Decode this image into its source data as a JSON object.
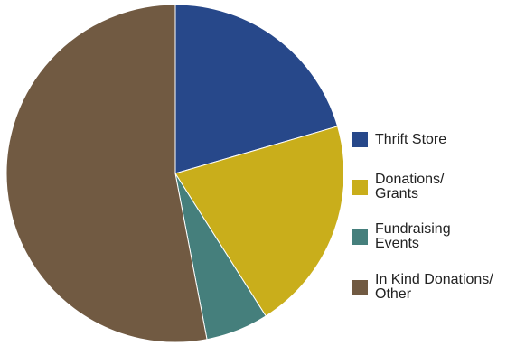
{
  "chart_data": {
    "type": "pie",
    "categories": [
      "Thrift Store",
      "Donations/\nGrants",
      "Fundraising\nEvents",
      "In Kind Donations/\nOther"
    ],
    "values": [
      20.5,
      20.5,
      6,
      53
    ],
    "colors": [
      "#27488a",
      "#c9ae1b",
      "#457f7c",
      "#715a42"
    ],
    "legend_position": "right"
  }
}
